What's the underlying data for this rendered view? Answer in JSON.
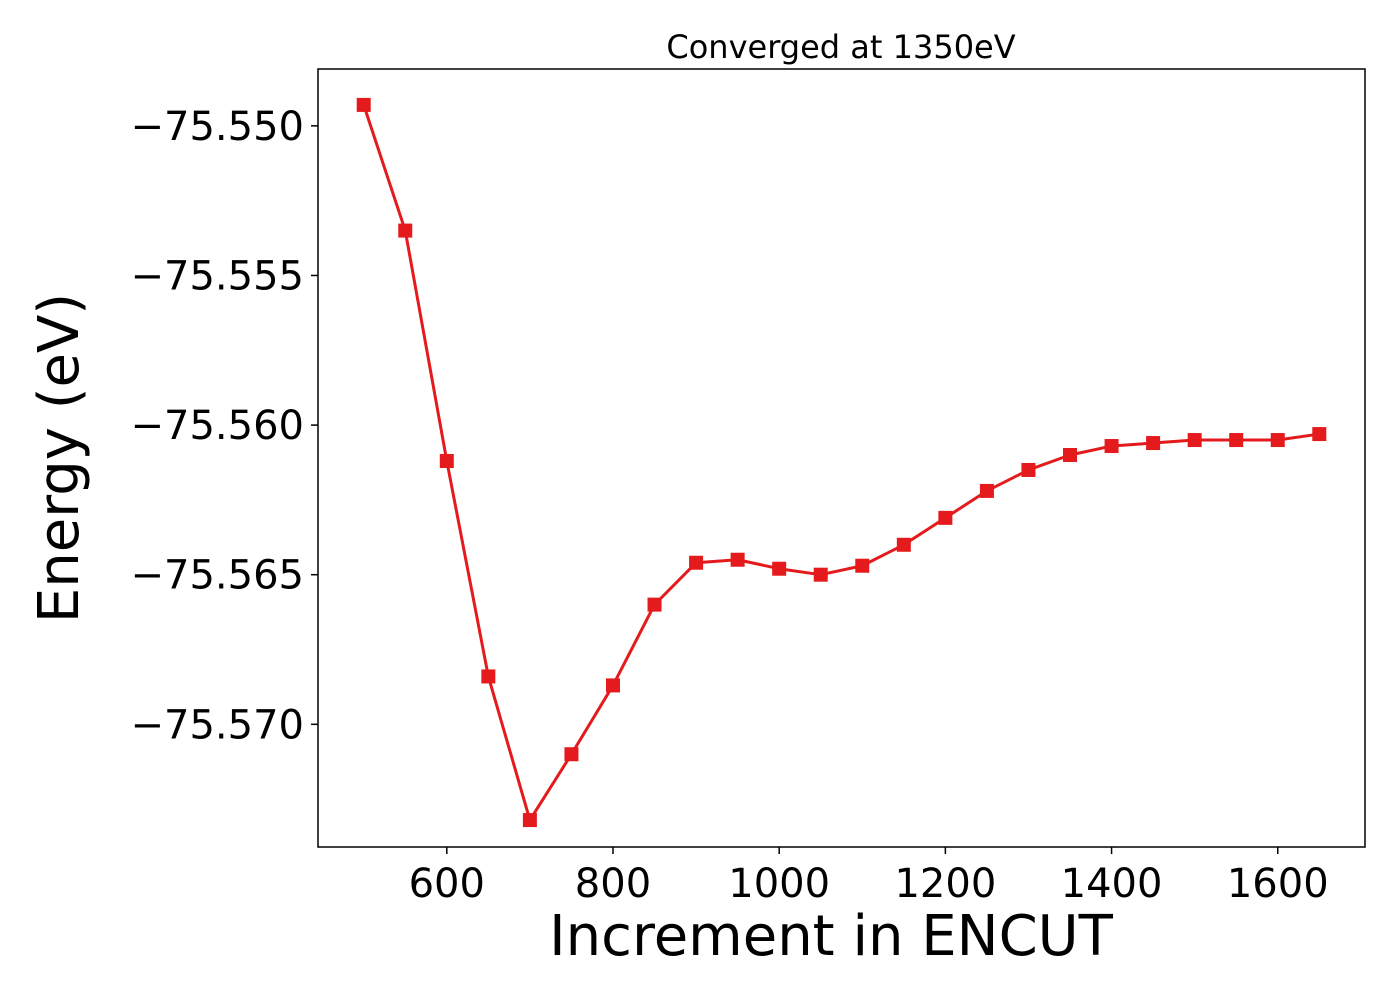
{
  "chart_data": {
    "type": "line",
    "title": "Converged at 1350eV",
    "xlabel": "Increment in ENCUT",
    "ylabel": "Energy (eV)",
    "xlim": [
      445,
      1705
    ],
    "ylim": [
      -75.5741,
      -75.5481
    ],
    "xticks": [
      600,
      800,
      1000,
      1200,
      1400,
      1600
    ],
    "xtick_labels": [
      "600",
      "800",
      "1000",
      "1200",
      "1400",
      "1600"
    ],
    "yticks": [
      -75.55,
      -75.555,
      -75.56,
      -75.565,
      -75.57
    ],
    "ytick_labels": [
      "−75.550",
      "−75.555",
      "−75.560",
      "−75.565",
      "−75.570"
    ],
    "grid": false,
    "series": [
      {
        "color": "#e41a1c",
        "marker": "square",
        "x": [
          500,
          550,
          600,
          650,
          700,
          750,
          800,
          850,
          900,
          950,
          1000,
          1050,
          1100,
          1150,
          1200,
          1250,
          1300,
          1350,
          1400,
          1450,
          1500,
          1550,
          1600,
          1650
        ],
        "y": [
          -75.5493,
          -75.5535,
          -75.5612,
          -75.5684,
          -75.5732,
          -75.571,
          -75.5687,
          -75.566,
          -75.5646,
          -75.5645,
          -75.5648,
          -75.565,
          -75.5647,
          -75.564,
          -75.5631,
          -75.5622,
          -75.5615,
          -75.561,
          -75.5607,
          -75.5606,
          -75.5605,
          -75.5605,
          -75.5605,
          -75.5603
        ]
      }
    ]
  }
}
